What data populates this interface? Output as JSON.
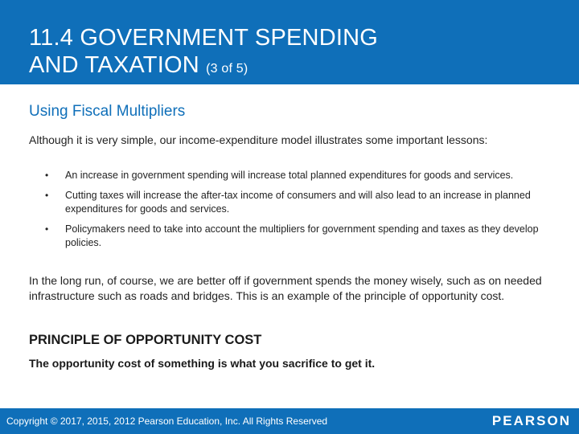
{
  "header": {
    "title_line1": "11.4 GOVERNMENT SPENDING",
    "title_line2": "AND TAXATION",
    "title_suffix": "(3 of 5)"
  },
  "content": {
    "subtitle": "Using Fiscal Multipliers",
    "intro": "Although it is very simple, our income-expenditure model illustrates some important lessons:",
    "bullets": [
      "An increase in government spending will increase total planned expenditures for goods and services.",
      "Cutting taxes will increase the after-tax income of consumers and will also lead to an increase in planned expenditures for goods and services.",
      "Policymakers need to take into account the multipliers for government spending and taxes as they develop policies."
    ],
    "paragraph": "In the long run, of course, we are better off if government spends the money wisely, such as on needed infrastructure such as roads and bridges. This is an example of the principle of opportunity cost.",
    "principle_title": "PRINCIPLE OF OPPORTUNITY COST",
    "principle_text": "The opportunity cost of something is what you sacrifice to get it."
  },
  "footer": {
    "copyright": "Copyright © 2017, 2015, 2012 Pearson Education, Inc. All Rights Reserved",
    "logo": "PEARSON"
  },
  "colors": {
    "brand_blue": "#0f6fb9",
    "text": "#222222"
  }
}
